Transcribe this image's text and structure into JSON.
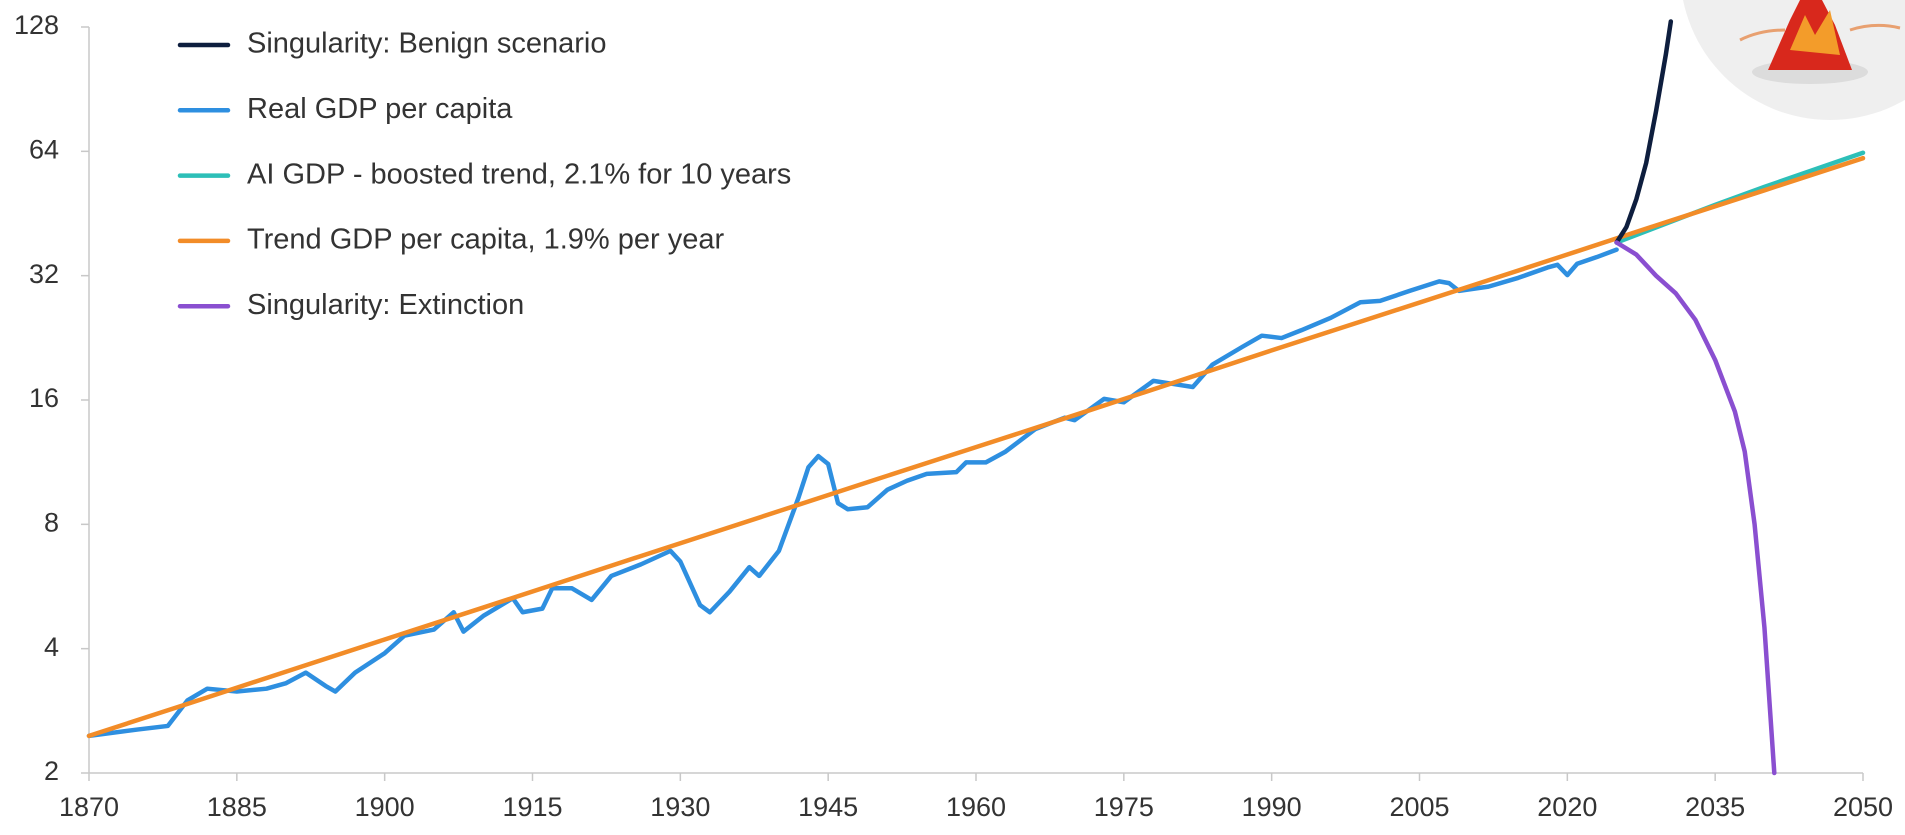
{
  "chart_data": {
    "type": "line",
    "log_scale_y": true,
    "grid": false,
    "legend_position": "upper-left",
    "xlim": [
      1870,
      2050
    ],
    "xticks": [
      1870,
      1885,
      1900,
      1915,
      1930,
      1945,
      1960,
      1975,
      1990,
      2005,
      2020,
      2035,
      2050
    ],
    "ylim": [
      2,
      128
    ],
    "yticks": [
      2,
      4,
      8,
      16,
      32,
      64,
      128
    ],
    "series": [
      {
        "name": "Singularity: Benign scenario",
        "color": "#0e1e3e",
        "x": [
          2025,
          2026,
          2027,
          2028,
          2029,
          2030,
          2030.5
        ],
        "values": [
          38.5,
          42,
          49,
          60,
          80,
          110,
          132
        ]
      },
      {
        "name": "Real GDP per capita",
        "color": "#2e8fe0",
        "x": [
          1870,
          1875,
          1878,
          1880,
          1882,
          1885,
          1888,
          1890,
          1892,
          1894,
          1895,
          1897,
          1900,
          1902,
          1905,
          1907,
          1908,
          1910,
          1913,
          1914,
          1916,
          1917,
          1919,
          1921,
          1923,
          1926,
          1929,
          1930,
          1932,
          1933,
          1935,
          1937,
          1938,
          1940,
          1942,
          1943,
          1944,
          1945,
          1946,
          1947,
          1949,
          1951,
          1953,
          1955,
          1958,
          1959,
          1961,
          1963,
          1966,
          1969,
          1970,
          1973,
          1975,
          1978,
          1980,
          1982,
          1984,
          1987,
          1989,
          1991,
          1993,
          1996,
          1999,
          2001,
          2004,
          2007,
          2008,
          2009,
          2012,
          2015,
          2018,
          2019,
          2020,
          2021,
          2023,
          2025
        ],
        "values": [
          2.46,
          2.55,
          2.6,
          3.0,
          3.2,
          3.15,
          3.2,
          3.3,
          3.5,
          3.25,
          3.15,
          3.5,
          3.9,
          4.3,
          4.45,
          4.9,
          4.4,
          4.8,
          5.3,
          4.9,
          5.0,
          5.6,
          5.6,
          5.25,
          6.0,
          6.4,
          6.9,
          6.5,
          5.1,
          4.9,
          5.5,
          6.3,
          6.0,
          6.9,
          9.3,
          11.0,
          11.7,
          11.2,
          9.0,
          8.7,
          8.8,
          9.7,
          10.2,
          10.6,
          10.7,
          11.3,
          11.3,
          12.0,
          13.6,
          14.5,
          14.3,
          16.1,
          15.8,
          17.8,
          17.5,
          17.2,
          19.5,
          21.5,
          22.9,
          22.6,
          23.6,
          25.3,
          27.6,
          27.8,
          29.4,
          31.0,
          30.7,
          29.4,
          30.1,
          31.6,
          33.5,
          34.0,
          32.1,
          34.2,
          35.5,
          37.0
        ]
      },
      {
        "name": "AI GDP - boosted trend, 2.1% for 10 years",
        "color": "#2dbfb8",
        "x": [
          2025,
          2035,
          2040,
          2050
        ],
        "values": [
          38.5,
          47.5,
          52.5,
          63.5
        ]
      },
      {
        "name": "Trend GDP per capita, 1.9% per year",
        "color": "#f28c28",
        "x": [
          1870,
          1880,
          1890,
          1900,
          1910,
          1920,
          1930,
          1940,
          1950,
          1960,
          1970,
          1980,
          1990,
          2000,
          2010,
          2020,
          2030,
          2040,
          2050
        ],
        "values": [
          2.46,
          2.94,
          3.52,
          4.21,
          5.03,
          6.02,
          7.2,
          8.61,
          10.3,
          12.3,
          14.7,
          17.6,
          21.1,
          25.2,
          30.1,
          36.0,
          43.1,
          51.5,
          61.6
        ]
      },
      {
        "name": "Singularity: Extinction",
        "color": "#8a4fd0",
        "x": [
          2025,
          2027,
          2029,
          2031,
          2033,
          2035,
          2037,
          2038,
          2039,
          2040,
          2041
        ],
        "values": [
          38.5,
          36,
          32,
          29,
          25,
          20,
          15,
          12,
          8,
          4.5,
          2
        ]
      }
    ]
  }
}
